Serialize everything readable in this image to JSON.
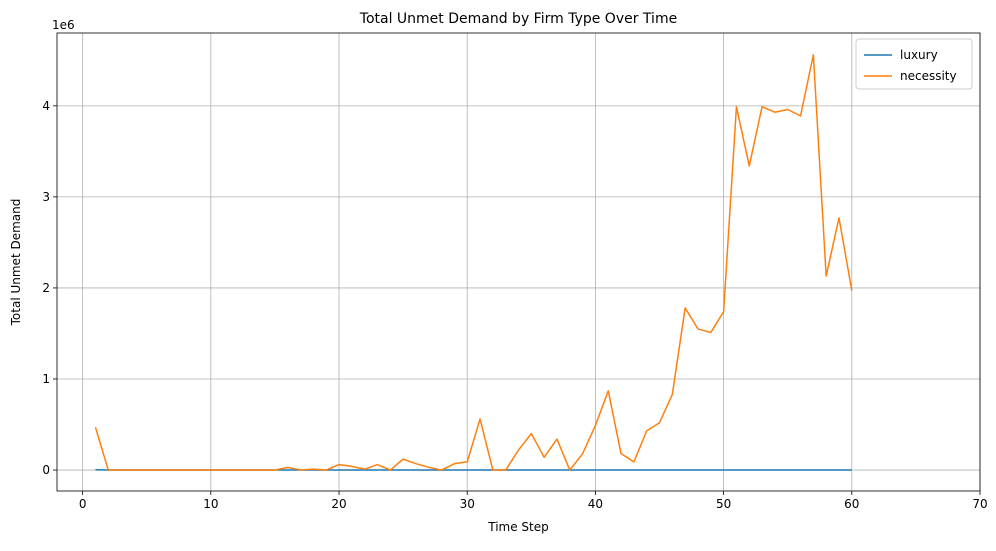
{
  "chart_data": {
    "type": "line",
    "title": "Total Unmet Demand by Firm Type Over Time",
    "xlabel": "Time Step",
    "ylabel": "Total Unmet Demand",
    "y_scale_label": "1e6",
    "xlim": [
      -2,
      70
    ],
    "ylim": [
      -0.23,
      4.8
    ],
    "xticks": [
      0,
      10,
      20,
      30,
      40,
      50,
      60,
      70
    ],
    "xtick_labels": [
      "0",
      "10",
      "20",
      "30",
      "40",
      "50",
      "60",
      "70"
    ],
    "yticks": [
      0,
      1,
      2,
      3,
      4
    ],
    "ytick_labels": [
      "0",
      "1",
      "2",
      "3",
      "4"
    ],
    "grid": true,
    "legend_position": "top-right",
    "x": [
      1,
      2,
      3,
      4,
      5,
      6,
      7,
      8,
      9,
      10,
      11,
      12,
      13,
      14,
      15,
      16,
      17,
      18,
      19,
      20,
      21,
      22,
      23,
      24,
      25,
      26,
      27,
      28,
      29,
      30,
      31,
      32,
      33,
      34,
      35,
      36,
      37,
      38,
      39,
      40,
      41,
      42,
      43,
      44,
      45,
      46,
      47,
      48,
      49,
      50,
      51,
      52,
      53,
      54,
      55,
      56,
      57,
      58,
      59,
      60
    ],
    "series": [
      {
        "name": "luxury",
        "color": "#1f77b4",
        "values": [
          0.003,
          0,
          0,
          0,
          0,
          0,
          0,
          0,
          0,
          0,
          0,
          0,
          0,
          0,
          0,
          0,
          0,
          0,
          0,
          0,
          0,
          0,
          0,
          0,
          0,
          0,
          0,
          0,
          0,
          0,
          0,
          0,
          0,
          0,
          0,
          0,
          0,
          0,
          0,
          0,
          0,
          0,
          0,
          0,
          0,
          0,
          0,
          0,
          0,
          0,
          0,
          0,
          0,
          0,
          0,
          0,
          0,
          0,
          0,
          0
        ]
      },
      {
        "name": "necessity",
        "color": "#ff7f0e",
        "values": [
          0.47,
          0,
          0,
          0,
          0,
          0,
          0,
          0,
          0,
          0,
          0,
          0,
          0,
          0,
          0,
          0.03,
          0,
          0.01,
          0,
          0.06,
          0.04,
          0.01,
          0.06,
          0,
          0.12,
          0.07,
          0.03,
          0,
          0.07,
          0.09,
          0.56,
          0,
          0,
          0.22,
          0.4,
          0.14,
          0.34,
          0,
          0.18,
          0.49,
          0.87,
          0.18,
          0.09,
          0.43,
          0.52,
          0.83,
          1.78,
          1.55,
          1.51,
          1.74,
          3.99,
          3.34,
          3.99,
          3.93,
          3.96,
          3.89,
          4.56,
          2.13,
          2.77,
          1.97
        ]
      }
    ]
  }
}
